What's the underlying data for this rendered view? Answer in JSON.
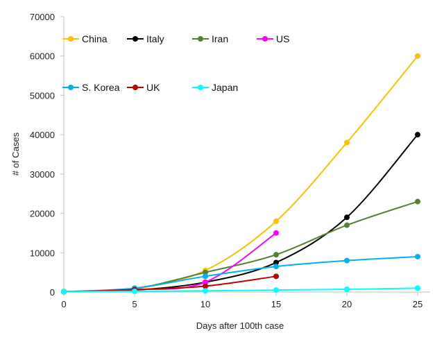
{
  "chart_data": {
    "type": "line",
    "title": "",
    "xlabel": "Days after 100th case",
    "ylabel": "# of Cases",
    "xlim": [
      0,
      25
    ],
    "ylim": [
      0,
      70000
    ],
    "xticks": [
      0,
      5,
      10,
      15,
      20,
      25
    ],
    "yticks": [
      0,
      10000,
      20000,
      30000,
      40000,
      50000,
      60000,
      70000
    ],
    "grid": false,
    "legend_position": "top, inside plot, two rows",
    "series": [
      {
        "name": "China",
        "color": "#ffc000",
        "x": [
          0,
          5,
          10,
          15,
          20,
          25
        ],
        "values": [
          100,
          800,
          5500,
          18000,
          38000,
          60000
        ]
      },
      {
        "name": "Italy",
        "color": "#000000",
        "x": [
          0,
          5,
          10,
          15,
          20,
          25
        ],
        "values": [
          100,
          500,
          2500,
          7500,
          19000,
          40000
        ]
      },
      {
        "name": "Iran",
        "color": "#548235",
        "x": [
          0,
          5,
          10,
          15,
          20,
          25
        ],
        "values": [
          100,
          900,
          5000,
          9500,
          17000,
          23000
        ]
      },
      {
        "name": "US",
        "color": "#ff00ff",
        "x": [
          0,
          5,
          10,
          15
        ],
        "values": [
          100,
          600,
          2500,
          15000
        ]
      },
      {
        "name": "S. Korea",
        "color": "#00b0f0",
        "x": [
          0,
          5,
          10,
          15,
          20,
          25
        ],
        "values": [
          100,
          1000,
          4000,
          6500,
          8000,
          9000
        ]
      },
      {
        "name": "UK",
        "color": "#c00000",
        "x": [
          0,
          5,
          10,
          15
        ],
        "values": [
          100,
          600,
          1500,
          4000
        ]
      },
      {
        "name": "Japan",
        "color": "#00ffff",
        "x": [
          0,
          5,
          10,
          15,
          20,
          25
        ],
        "values": [
          100,
          200,
          300,
          500,
          700,
          1000
        ]
      }
    ]
  }
}
